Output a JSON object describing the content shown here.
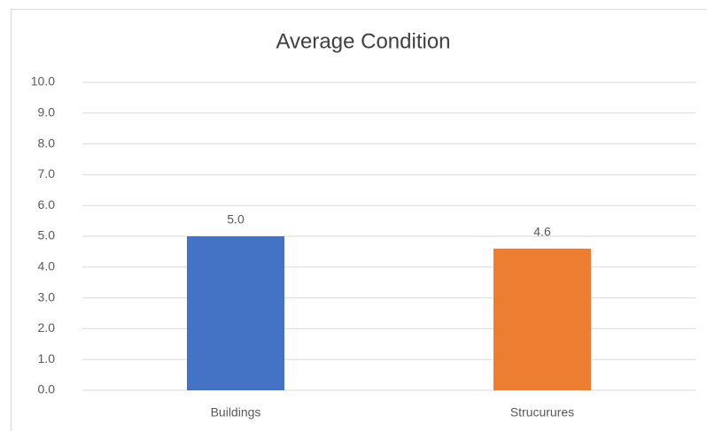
{
  "chart_data": {
    "type": "bar",
    "title": "Average Condition",
    "categories": [
      "Buildings",
      "Strucurures"
    ],
    "values": [
      5.0,
      4.6
    ],
    "value_labels": [
      "5.0",
      "4.6"
    ],
    "colors": [
      "#4472c4",
      "#ed7d31"
    ],
    "ylim": [
      0,
      10
    ],
    "yticks": [
      {
        "value": 0,
        "label": "0.0"
      },
      {
        "value": 1,
        "label": "1.0"
      },
      {
        "value": 2,
        "label": "2.0"
      },
      {
        "value": 3,
        "label": "3.0"
      },
      {
        "value": 4,
        "label": "4.0"
      },
      {
        "value": 5,
        "label": "5.0"
      },
      {
        "value": 6,
        "label": "6.0"
      },
      {
        "value": 7,
        "label": "7.0"
      },
      {
        "value": 8,
        "label": "8.0"
      },
      {
        "value": 9,
        "label": "9.0"
      },
      {
        "value": 10,
        "label": "10.0"
      }
    ],
    "grid": true
  }
}
